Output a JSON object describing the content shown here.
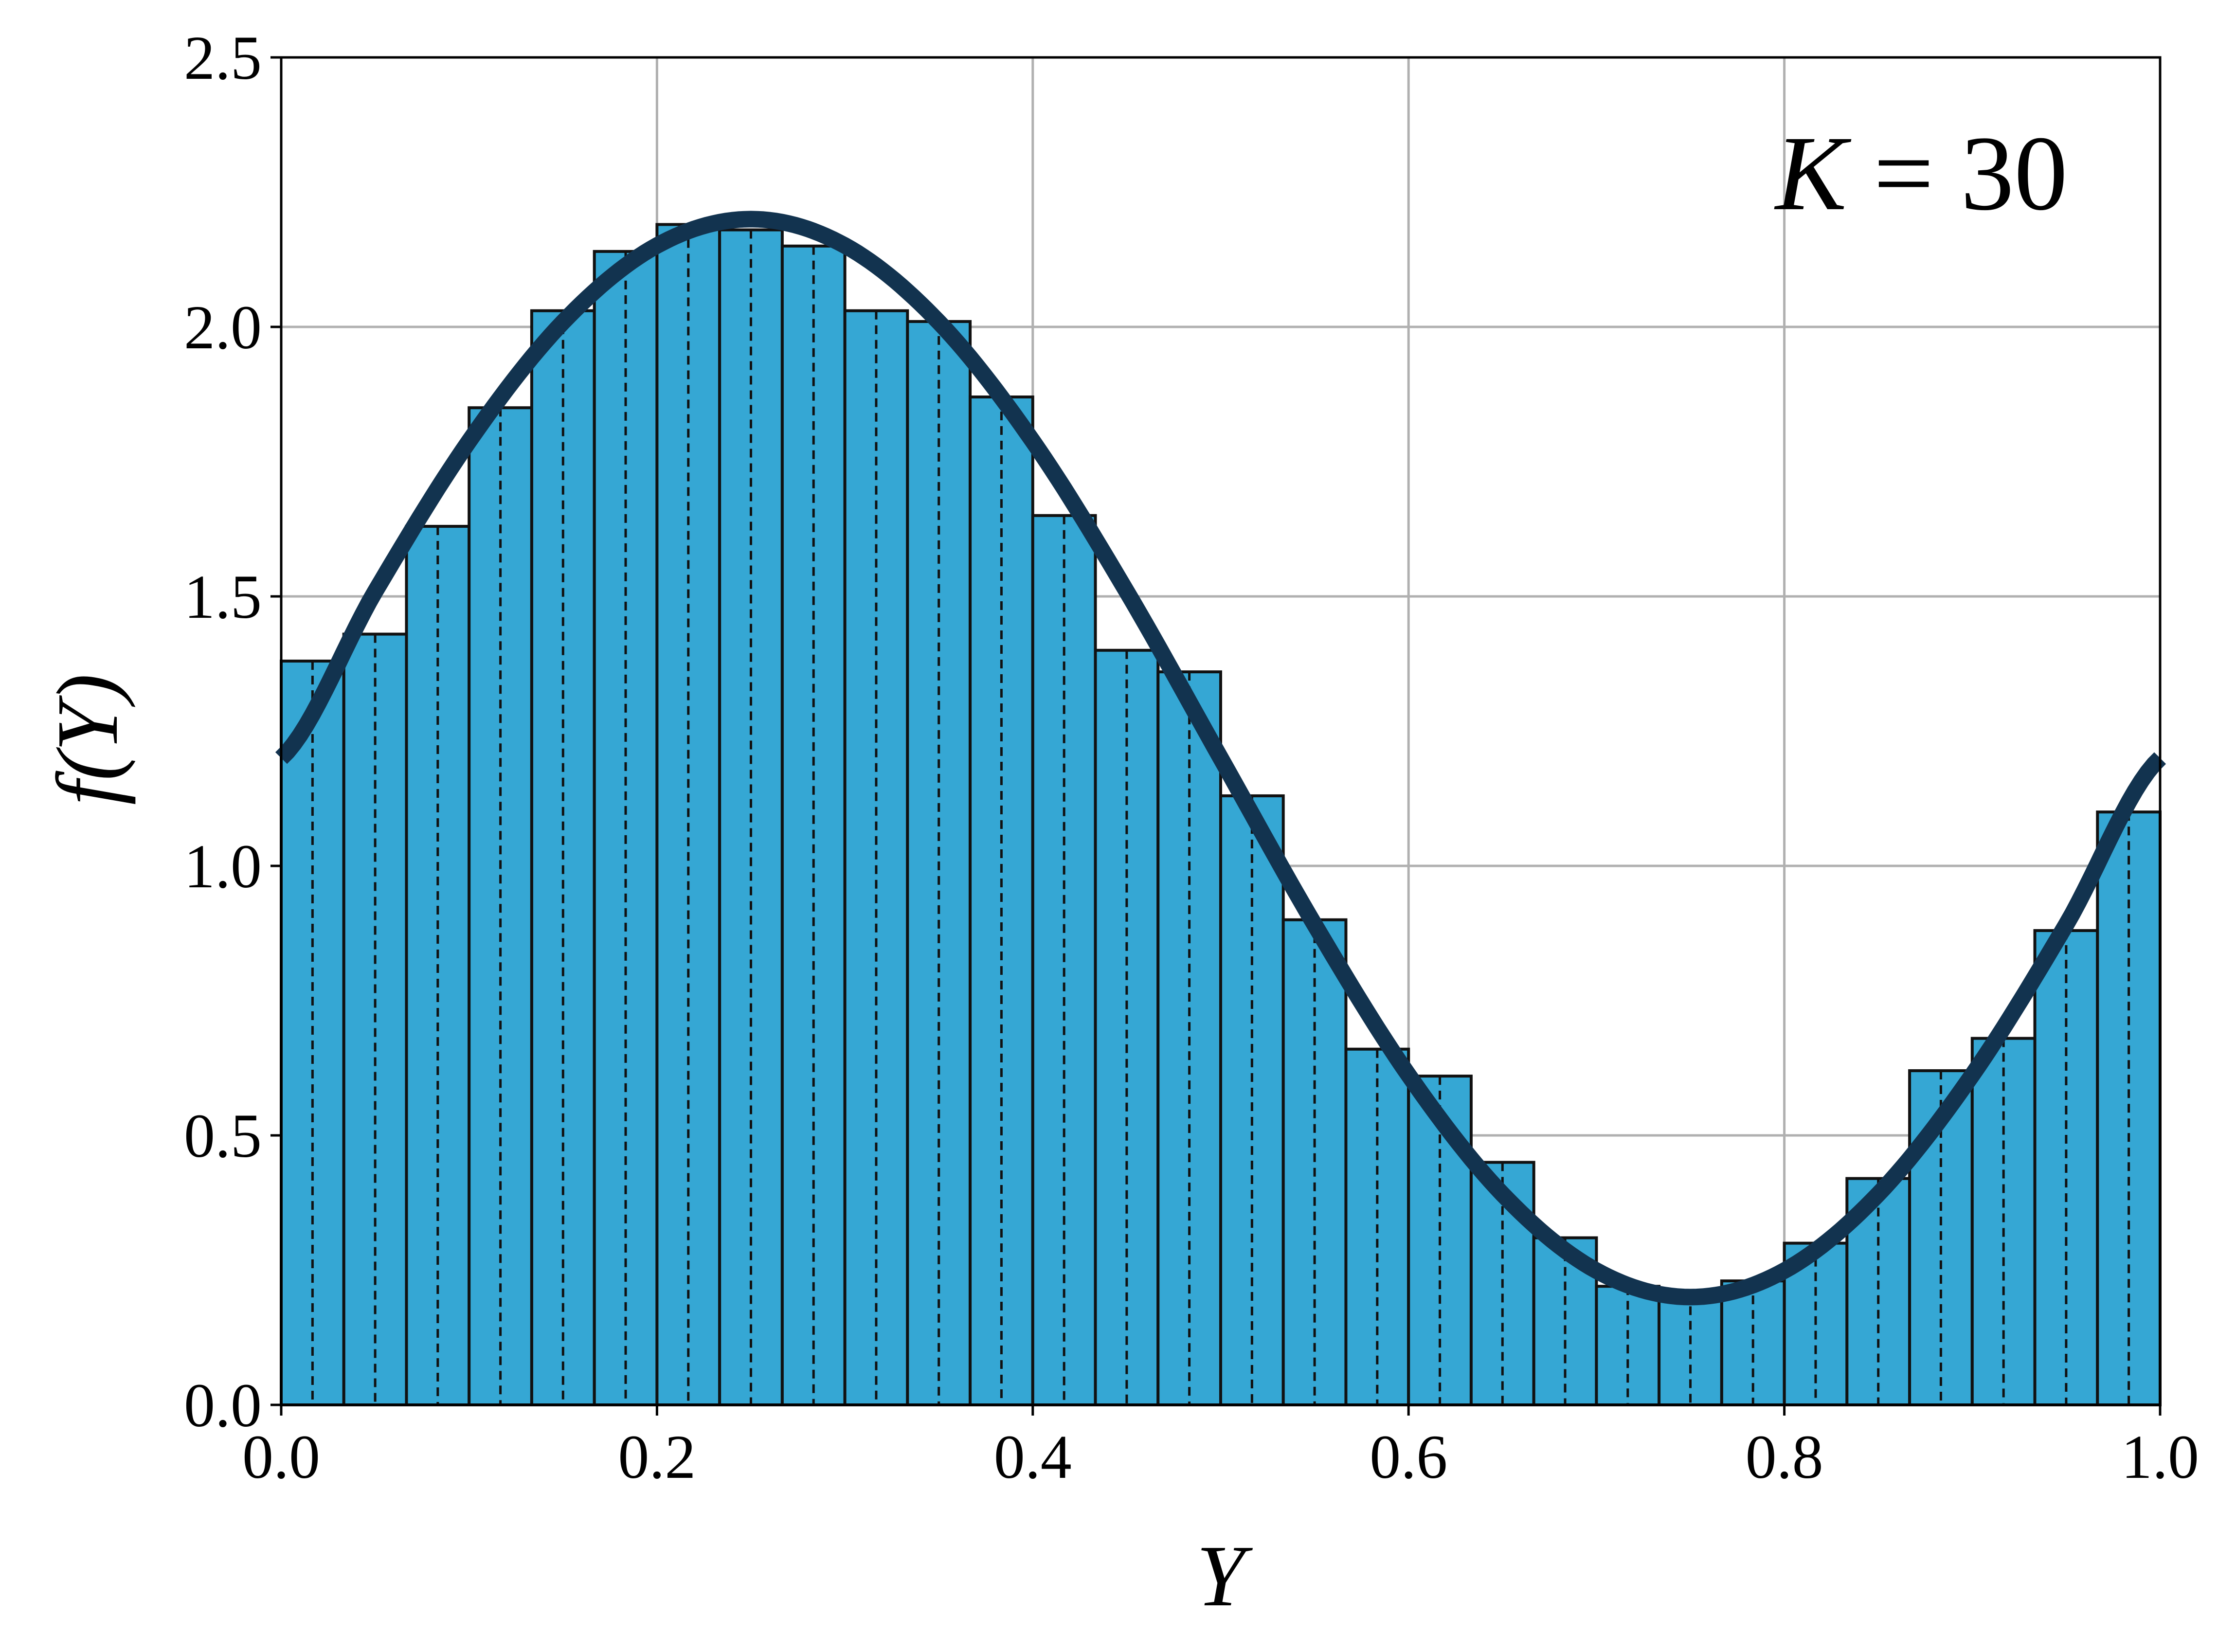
{
  "chart_data": {
    "type": "bar",
    "title": "",
    "xlabel": "Y",
    "ylabel": "f(Y)",
    "xlim": [
      0.0,
      1.0
    ],
    "ylim": [
      0.0,
      2.5
    ],
    "xticks": [
      "0.0",
      "0.2",
      "0.4",
      "0.6",
      "0.8",
      "1.0"
    ],
    "yticks": [
      "0.0",
      "0.5",
      "1.0",
      "1.5",
      "2.0",
      "2.5"
    ],
    "grid": true,
    "bin_count": 30,
    "bin_edges": [
      0.0,
      0.03333,
      0.06667,
      0.1,
      0.13333,
      0.16667,
      0.2,
      0.23333,
      0.26667,
      0.3,
      0.33333,
      0.36667,
      0.4,
      0.43333,
      0.46667,
      0.5,
      0.53333,
      0.56667,
      0.6,
      0.63333,
      0.66667,
      0.7,
      0.73333,
      0.76667,
      0.8,
      0.83333,
      0.86667,
      0.9,
      0.93333,
      0.96667,
      1.0
    ],
    "values": [
      1.38,
      1.43,
      1.63,
      1.85,
      2.03,
      2.14,
      2.19,
      2.18,
      2.15,
      2.03,
      2.01,
      1.87,
      1.65,
      1.4,
      1.36,
      1.13,
      0.9,
      0.66,
      0.61,
      0.45,
      0.31,
      0.22,
      0.21,
      0.23,
      0.3,
      0.42,
      0.62,
      0.68,
      0.88,
      1.1
    ],
    "dashed_lines_x": [
      0.01667,
      0.05,
      0.08333,
      0.11667,
      0.15,
      0.18333,
      0.21667,
      0.25,
      0.28333,
      0.31667,
      0.35,
      0.38333,
      0.41667,
      0.45,
      0.48333,
      0.51667,
      0.55,
      0.58333,
      0.61667,
      0.65,
      0.68333,
      0.71667,
      0.75,
      0.78333,
      0.81667,
      0.85,
      0.88333,
      0.91667,
      0.95,
      0.98333
    ],
    "curve": {
      "type": "line",
      "x": [
        0.0,
        0.05,
        0.1,
        0.15,
        0.2,
        0.25,
        0.3,
        0.35,
        0.4,
        0.45,
        0.5,
        0.55,
        0.6,
        0.65,
        0.7,
        0.75,
        0.8,
        0.85,
        0.9,
        0.95,
        1.0
      ],
      "y": [
        1.2,
        1.509,
        1.788,
        2.009,
        2.151,
        2.2,
        2.151,
        2.009,
        1.788,
        1.509,
        1.2,
        0.891,
        0.612,
        0.391,
        0.249,
        0.2,
        0.249,
        0.391,
        0.612,
        0.891,
        1.2
      ]
    },
    "annotation": {
      "var": "K",
      "eq": " = 30",
      "position": "top-right"
    },
    "colors": {
      "bar_fill": "#35a7d4",
      "bar_edge": "#111111",
      "curve": "#12334f",
      "grid": "#b0b0b0",
      "axis": "#000000"
    }
  }
}
